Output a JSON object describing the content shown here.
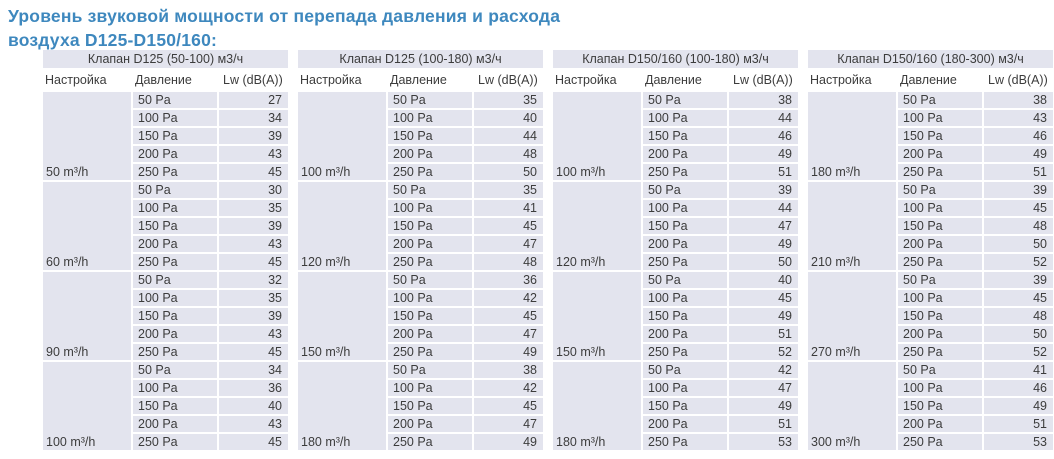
{
  "title": {
    "line1": "Уровень звуковой мощности от перепада давления и расхода",
    "line2": "воздуха D125-D150/160:"
  },
  "colors": {
    "title_blue": "#3e88be",
    "cell_bg": "#e3e4ee",
    "text": "#3c3c3c",
    "page_bg": "#ffffff"
  },
  "tables": [
    {
      "header": "Клапан D125 (50-100) м3/ч",
      "columns": [
        "Настройка",
        "Давление",
        "Lw (dB(A))"
      ],
      "groups": [
        {
          "setting": "50 m³/h",
          "rows": [
            [
              "50 Pa",
              "27"
            ],
            [
              "100 Pa",
              "34"
            ],
            [
              "150 Pa",
              "39"
            ],
            [
              "200 Pa",
              "43"
            ],
            [
              "250 Pa",
              "45"
            ]
          ]
        },
        {
          "setting": "60 m³/h",
          "rows": [
            [
              "50 Pa",
              "30"
            ],
            [
              "100 Pa",
              "35"
            ],
            [
              "150 Pa",
              "39"
            ],
            [
              "200 Pa",
              "43"
            ],
            [
              "250 Pa",
              "45"
            ]
          ]
        },
        {
          "setting": "90 m³/h",
          "rows": [
            [
              "50 Pa",
              "32"
            ],
            [
              "100 Pa",
              "35"
            ],
            [
              "150 Pa",
              "39"
            ],
            [
              "200 Pa",
              "43"
            ],
            [
              "250 Pa",
              "45"
            ]
          ]
        },
        {
          "setting": "100 m³/h",
          "rows": [
            [
              "50 Pa",
              "34"
            ],
            [
              "100 Pa",
              "36"
            ],
            [
              "150 Pa",
              "40"
            ],
            [
              "200 Pa",
              "43"
            ],
            [
              "250 Pa",
              "45"
            ]
          ]
        }
      ]
    },
    {
      "header": "Клапан D125 (100-180) м3/ч",
      "columns": [
        "Настройка",
        "Давление",
        "Lw (dB(A))"
      ],
      "groups": [
        {
          "setting": "100 m³/h",
          "rows": [
            [
              "50 Pa",
              "35"
            ],
            [
              "100 Pa",
              "40"
            ],
            [
              "150 Pa",
              "44"
            ],
            [
              "200 Pa",
              "48"
            ],
            [
              "250 Pa",
              "50"
            ]
          ]
        },
        {
          "setting": "120 m³/h",
          "rows": [
            [
              "50 Pa",
              "35"
            ],
            [
              "100 Pa",
              "41"
            ],
            [
              "150 Pa",
              "45"
            ],
            [
              "200 Pa",
              "47"
            ],
            [
              "250 Pa",
              "48"
            ]
          ]
        },
        {
          "setting": "150 m³/h",
          "rows": [
            [
              "50 Pa",
              "36"
            ],
            [
              "100 Pa",
              "42"
            ],
            [
              "150 Pa",
              "45"
            ],
            [
              "200 Pa",
              "47"
            ],
            [
              "250 Pa",
              "49"
            ]
          ]
        },
        {
          "setting": "180 m³/h",
          "rows": [
            [
              "50 Pa",
              "38"
            ],
            [
              "100 Pa",
              "42"
            ],
            [
              "150 Pa",
              "45"
            ],
            [
              "200 Pa",
              "47"
            ],
            [
              "250 Pa",
              "49"
            ]
          ]
        }
      ]
    },
    {
      "header": "Клапан D150/160 (100-180) м3/ч",
      "columns": [
        "Настройка",
        "Давление",
        "Lw (dB(A))"
      ],
      "groups": [
        {
          "setting": "100 m³/h",
          "rows": [
            [
              "50 Pa",
              "38"
            ],
            [
              "100 Pa",
              "44"
            ],
            [
              "150 Pa",
              "46"
            ],
            [
              "200 Pa",
              "49"
            ],
            [
              "250 Pa",
              "51"
            ]
          ]
        },
        {
          "setting": "120 m³/h",
          "rows": [
            [
              "50 Pa",
              "39"
            ],
            [
              "100 Pa",
              "44"
            ],
            [
              "150 Pa",
              "47"
            ],
            [
              "200 Pa",
              "49"
            ],
            [
              "250 Pa",
              "50"
            ]
          ]
        },
        {
          "setting": "150 m³/h",
          "rows": [
            [
              "50 Pa",
              "40"
            ],
            [
              "100 Pa",
              "45"
            ],
            [
              "150 Pa",
              "49"
            ],
            [
              "200 Pa",
              "51"
            ],
            [
              "250 Pa",
              "52"
            ]
          ]
        },
        {
          "setting": "180 m³/h",
          "rows": [
            [
              "50 Pa",
              "42"
            ],
            [
              "100 Pa",
              "47"
            ],
            [
              "150 Pa",
              "49"
            ],
            [
              "200 Pa",
              "51"
            ],
            [
              "250 Pa",
              "53"
            ]
          ]
        }
      ]
    },
    {
      "header": "Клапан D150/160 (180-300) м3/ч",
      "columns": [
        "Настройка",
        "Давление",
        "Lw (dB(A))"
      ],
      "groups": [
        {
          "setting": "180 m³/h",
          "rows": [
            [
              "50 Pa",
              "38"
            ],
            [
              "100 Pa",
              "43"
            ],
            [
              "150 Pa",
              "46"
            ],
            [
              "200 Pa",
              "49"
            ],
            [
              "250 Pa",
              "51"
            ]
          ]
        },
        {
          "setting": "210 m³/h",
          "rows": [
            [
              "50 Pa",
              "39"
            ],
            [
              "100 Pa",
              "45"
            ],
            [
              "150 Pa",
              "48"
            ],
            [
              "200 Pa",
              "50"
            ],
            [
              "250 Pa",
              "52"
            ]
          ]
        },
        {
          "setting": "270 m³/h",
          "rows": [
            [
              "50 Pa",
              "39"
            ],
            [
              "100 Pa",
              "45"
            ],
            [
              "150 Pa",
              "48"
            ],
            [
              "200 Pa",
              "50"
            ],
            [
              "250 Pa",
              "52"
            ]
          ]
        },
        {
          "setting": "300 m³/h",
          "rows": [
            [
              "50 Pa",
              "41"
            ],
            [
              "100 Pa",
              "46"
            ],
            [
              "150 Pa",
              "49"
            ],
            [
              "200 Pa",
              "51"
            ],
            [
              "250 Pa",
              "53"
            ]
          ]
        }
      ]
    }
  ]
}
